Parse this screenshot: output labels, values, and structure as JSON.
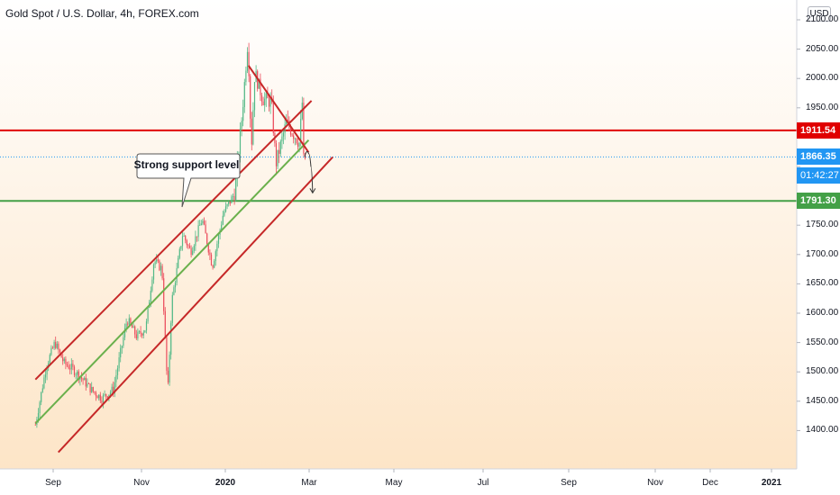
{
  "header": {
    "title": "Gold Spot / U.S. Dollar, 4h, FOREX.com",
    "currency": "USD"
  },
  "chart_data": {
    "type": "candlestick",
    "symbol": "Gold Spot / U.S. Dollar",
    "interval": "4h",
    "source": "FOREX.com",
    "ylim": [
      1355,
      2110
    ],
    "y_ticks": [
      "2100.00",
      "2050.00",
      "2000.00",
      "1950.00",
      "1900.00",
      "1850.00",
      "1800.00",
      "1750.00",
      "1700.00",
      "1650.00",
      "1600.00",
      "1550.00",
      "1500.00",
      "1450.00",
      "1400.00"
    ],
    "x_ticks": [
      {
        "label": "Sep",
        "major": false
      },
      {
        "label": "Nov",
        "major": false
      },
      {
        "label": "2020",
        "major": true
      },
      {
        "label": "Mar",
        "major": false
      },
      {
        "label": "May",
        "major": false
      },
      {
        "label": "Jul",
        "major": false
      },
      {
        "label": "Sep",
        "major": false
      },
      {
        "label": "Nov",
        "major": false
      },
      {
        "label": "Dec",
        "major": false
      },
      {
        "label": "2021",
        "major": true
      }
    ],
    "price_path": [
      {
        "date": "2019-08-01",
        "price": 1410
      },
      {
        "date": "2019-08-20",
        "price": 1510
      },
      {
        "date": "2019-09-04",
        "price": 1550
      },
      {
        "date": "2019-09-20",
        "price": 1515
      },
      {
        "date": "2019-10-05",
        "price": 1505
      },
      {
        "date": "2019-10-20",
        "price": 1490
      },
      {
        "date": "2019-11-08",
        "price": 1468
      },
      {
        "date": "2019-11-25",
        "price": 1455
      },
      {
        "date": "2019-12-15",
        "price": 1470
      },
      {
        "date": "2020-01-08",
        "price": 1590
      },
      {
        "date": "2020-01-25",
        "price": 1560
      },
      {
        "date": "2020-02-10",
        "price": 1575
      },
      {
        "date": "2020-02-24",
        "price": 1690
      },
      {
        "date": "2020-03-09",
        "price": 1675
      },
      {
        "date": "2020-03-19",
        "price": 1460
      },
      {
        "date": "2020-03-26",
        "price": 1620
      },
      {
        "date": "2020-04-14",
        "price": 1735
      },
      {
        "date": "2020-04-28",
        "price": 1705
      },
      {
        "date": "2020-05-18",
        "price": 1760
      },
      {
        "date": "2020-06-05",
        "price": 1680
      },
      {
        "date": "2020-06-24",
        "price": 1770
      },
      {
        "date": "2020-07-14",
        "price": 1805
      },
      {
        "date": "2020-07-27",
        "price": 1940
      },
      {
        "date": "2020-08-06",
        "price": 2067
      },
      {
        "date": "2020-08-12",
        "price": 1880
      },
      {
        "date": "2020-08-18",
        "price": 2010
      },
      {
        "date": "2020-09-01",
        "price": 1965
      },
      {
        "date": "2020-09-16",
        "price": 1960
      },
      {
        "date": "2020-09-24",
        "price": 1855
      },
      {
        "date": "2020-10-12",
        "price": 1925
      },
      {
        "date": "2020-11-04",
        "price": 1890
      },
      {
        "date": "2020-11-09",
        "price": 1962
      },
      {
        "date": "2020-11-10",
        "price": 1860
      },
      {
        "date": "2020-11-16",
        "price": 1866.35
      }
    ],
    "price_high": 2075,
    "price_low": 1452,
    "horizontal_levels": [
      {
        "price": 1911.54,
        "label": "1911.54",
        "color": "#e00000"
      },
      {
        "price": 1866.35,
        "label": "1866.35",
        "color": "#2196f3"
      },
      {
        "price": 1791.3,
        "label": "1791.30",
        "color": "#43a047"
      }
    ],
    "countdown_label": "01:42:27",
    "annotations": {
      "callout": "Strong support level"
    },
    "trend_lines": [
      {
        "name": "channel-upper",
        "color": "#c62828",
        "from": {
          "date": "2019-08-01",
          "price": 1487
        },
        "to": {
          "date": "2020-11-25",
          "price": 1962
        }
      },
      {
        "name": "channel-lower",
        "color": "#c62828",
        "from": {
          "date": "2019-09-10",
          "price": 1363
        },
        "to": {
          "date": "2021-01-01",
          "price": 1866
        }
      },
      {
        "name": "channel-mid",
        "color": "#6ab04c",
        "from": {
          "date": "2019-08-01",
          "price": 1412
        },
        "to": {
          "date": "2020-11-20",
          "price": 1895
        }
      },
      {
        "name": "descending-resistance",
        "color": "#c62828",
        "from": {
          "date": "2020-08-07",
          "price": 2022
        },
        "to": {
          "date": "2020-11-20",
          "price": 1874
        }
      }
    ],
    "projection": {
      "color": "#333333",
      "points": [
        {
          "date": "2020-11-13",
          "price": 1866
        },
        {
          "date": "2020-11-20",
          "price": 1872
        },
        {
          "date": "2020-11-24",
          "price": 1850
        },
        {
          "date": "2020-11-27",
          "price": 1805
        }
      ]
    },
    "colors": {
      "up": "#53b987",
      "down": "#eb4d5c",
      "background_top": "#ffffff",
      "background_bottom": "#fde5c7"
    },
    "grid": false,
    "legend": "none"
  }
}
